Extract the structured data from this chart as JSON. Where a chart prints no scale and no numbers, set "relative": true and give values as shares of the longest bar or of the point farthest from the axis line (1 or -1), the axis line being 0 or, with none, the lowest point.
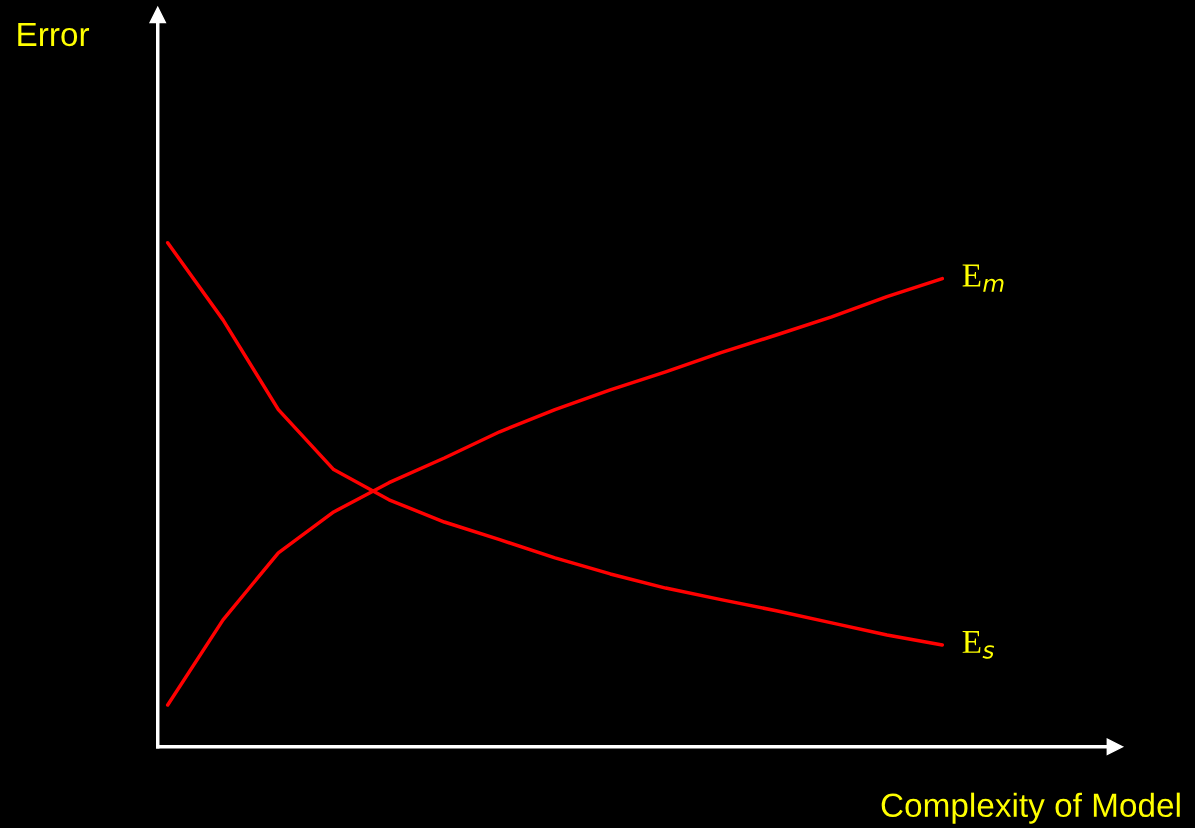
{
  "chart_data": {
    "type": "line",
    "relative": true,
    "xlabel": "Complexity of Model",
    "annotations": [
      "Error"
    ],
    "categories": [
      null,
      null,
      null,
      null,
      null,
      null,
      null,
      null,
      null,
      null,
      null,
      null,
      null,
      null,
      null
    ],
    "series": [
      {
        "name": "E$_{m}$",
        "color": "#ff0000",
        "values": [
          0.083,
          0.252,
          0.385,
          0.466,
          0.524,
          0.573,
          0.625,
          0.669,
          0.708,
          0.744,
          0.782,
          0.817,
          0.853,
          0.893,
          0.929
        ]
      },
      {
        "name": "E$_{s}$",
        "color": "#ff0000",
        "values": [
          1,
          0.847,
          0.669,
          0.55,
          0.49,
          0.446,
          0.411,
          0.375,
          0.343,
          0.315,
          0.292,
          0.27,
          0.246,
          0.222,
          0.202
        ]
      }
    ],
    "grid": false,
    "legend": false,
    "marker": "none",
    "line_style": "solid"
  }
}
